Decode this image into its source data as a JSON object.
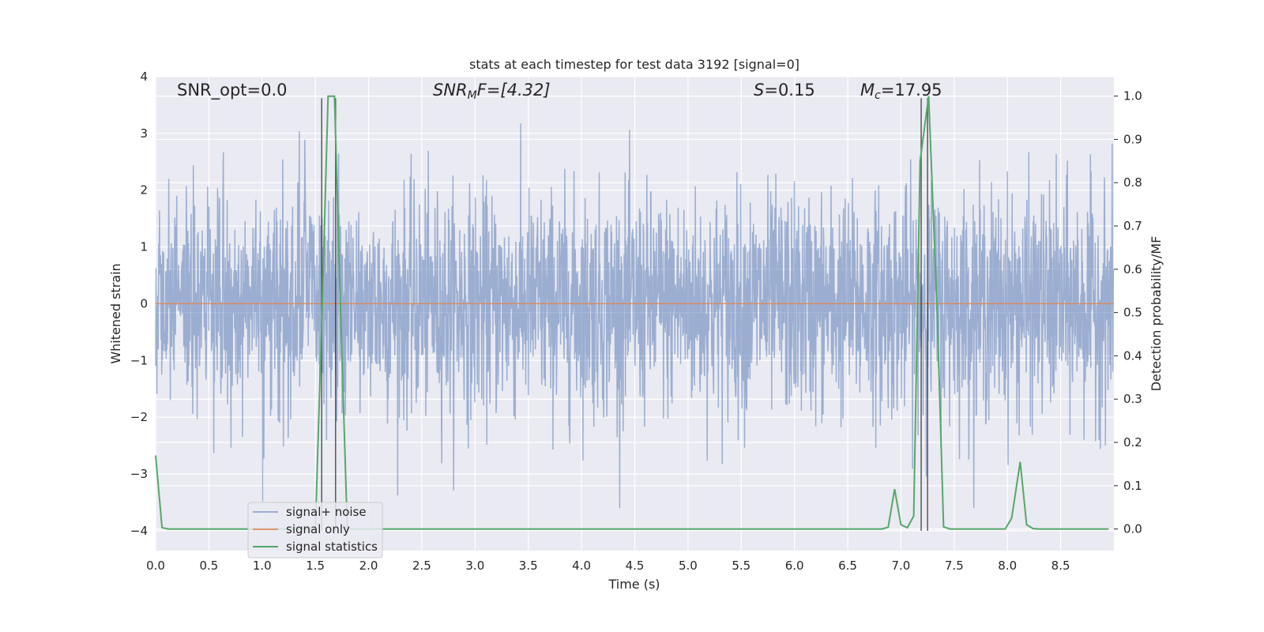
{
  "chart_data": {
    "type": "line",
    "title": "stats at each timestep for test data 3192 [signal=0]",
    "xlabel": "Time (s)",
    "ylabel_left": "Whitened strain",
    "ylabel_right": "Detection probability/MF",
    "xlim": [
      0.0,
      9.0
    ],
    "ylim_left": [
      -4.35,
      4.0
    ],
    "ylim_right": [
      -0.05,
      1.045
    ],
    "x_ticks": [
      "0.0",
      "0.5",
      "1.0",
      "1.5",
      "2.0",
      "2.5",
      "3.0",
      "3.5",
      "4.0",
      "4.5",
      "5.0",
      "5.5",
      "6.0",
      "6.5",
      "7.0",
      "7.5",
      "8.0",
      "8.5"
    ],
    "y_ticks_left": [
      "-4",
      "-3",
      "-2",
      "-1",
      "0",
      "1",
      "2",
      "3",
      "4"
    ],
    "y_ticks_right": [
      "0.0",
      "0.1",
      "0.2",
      "0.3",
      "0.4",
      "0.5",
      "0.6",
      "0.7",
      "0.8",
      "0.9",
      "1.0"
    ],
    "grid": true,
    "legend_position": "lower-left",
    "annotations": {
      "snr_opt": "SNR_opt=0.0",
      "snr_mf_main": "SNR",
      "snr_mf_sub": "M",
      "snr_mf_tail": "F=[4.32]",
      "s_main": "S",
      "s_tail": "=0.15",
      "mc_main": "M",
      "mc_sub": "c",
      "mc_tail": "=17.95"
    },
    "series": [
      {
        "name": "signal+ noise",
        "color": "#4c72b0",
        "style": "dense noise, approx. Gaussian, std ~1.0, range about -3.6 to 3.6"
      },
      {
        "name": "signal only",
        "color": "#dd8452",
        "x": [
          0.0,
          9.0
        ],
        "y": [
          0.0,
          0.0
        ]
      },
      {
        "name": "signal statistics",
        "color": "#55a868",
        "x": [
          0.0,
          0.06,
          0.12,
          1.5,
          1.56,
          1.62,
          1.68,
          1.74,
          1.8,
          6.82,
          6.88,
          6.94,
          7.0,
          7.06,
          7.12,
          7.18,
          7.26,
          7.34,
          7.4,
          7.46,
          7.98,
          8.04,
          8.12,
          8.18,
          8.24,
          8.3,
          8.95
        ],
        "y": [
          0.17,
          0.003,
          0.0,
          0.0,
          0.48,
          1.0,
          1.0,
          0.48,
          0.0,
          0.0,
          0.004,
          0.092,
          0.01,
          0.003,
          0.03,
          0.85,
          1.0,
          0.5,
          0.005,
          0.0,
          0.0,
          0.025,
          0.155,
          0.01,
          0.001,
          0.0,
          0.0
        ]
      }
    ],
    "vertical_lines": {
      "color": "#333333",
      "x": [
        1.56,
        1.69,
        7.19,
        7.25
      ],
      "y_top": 3.62,
      "y_bottom": -4.0
    }
  }
}
